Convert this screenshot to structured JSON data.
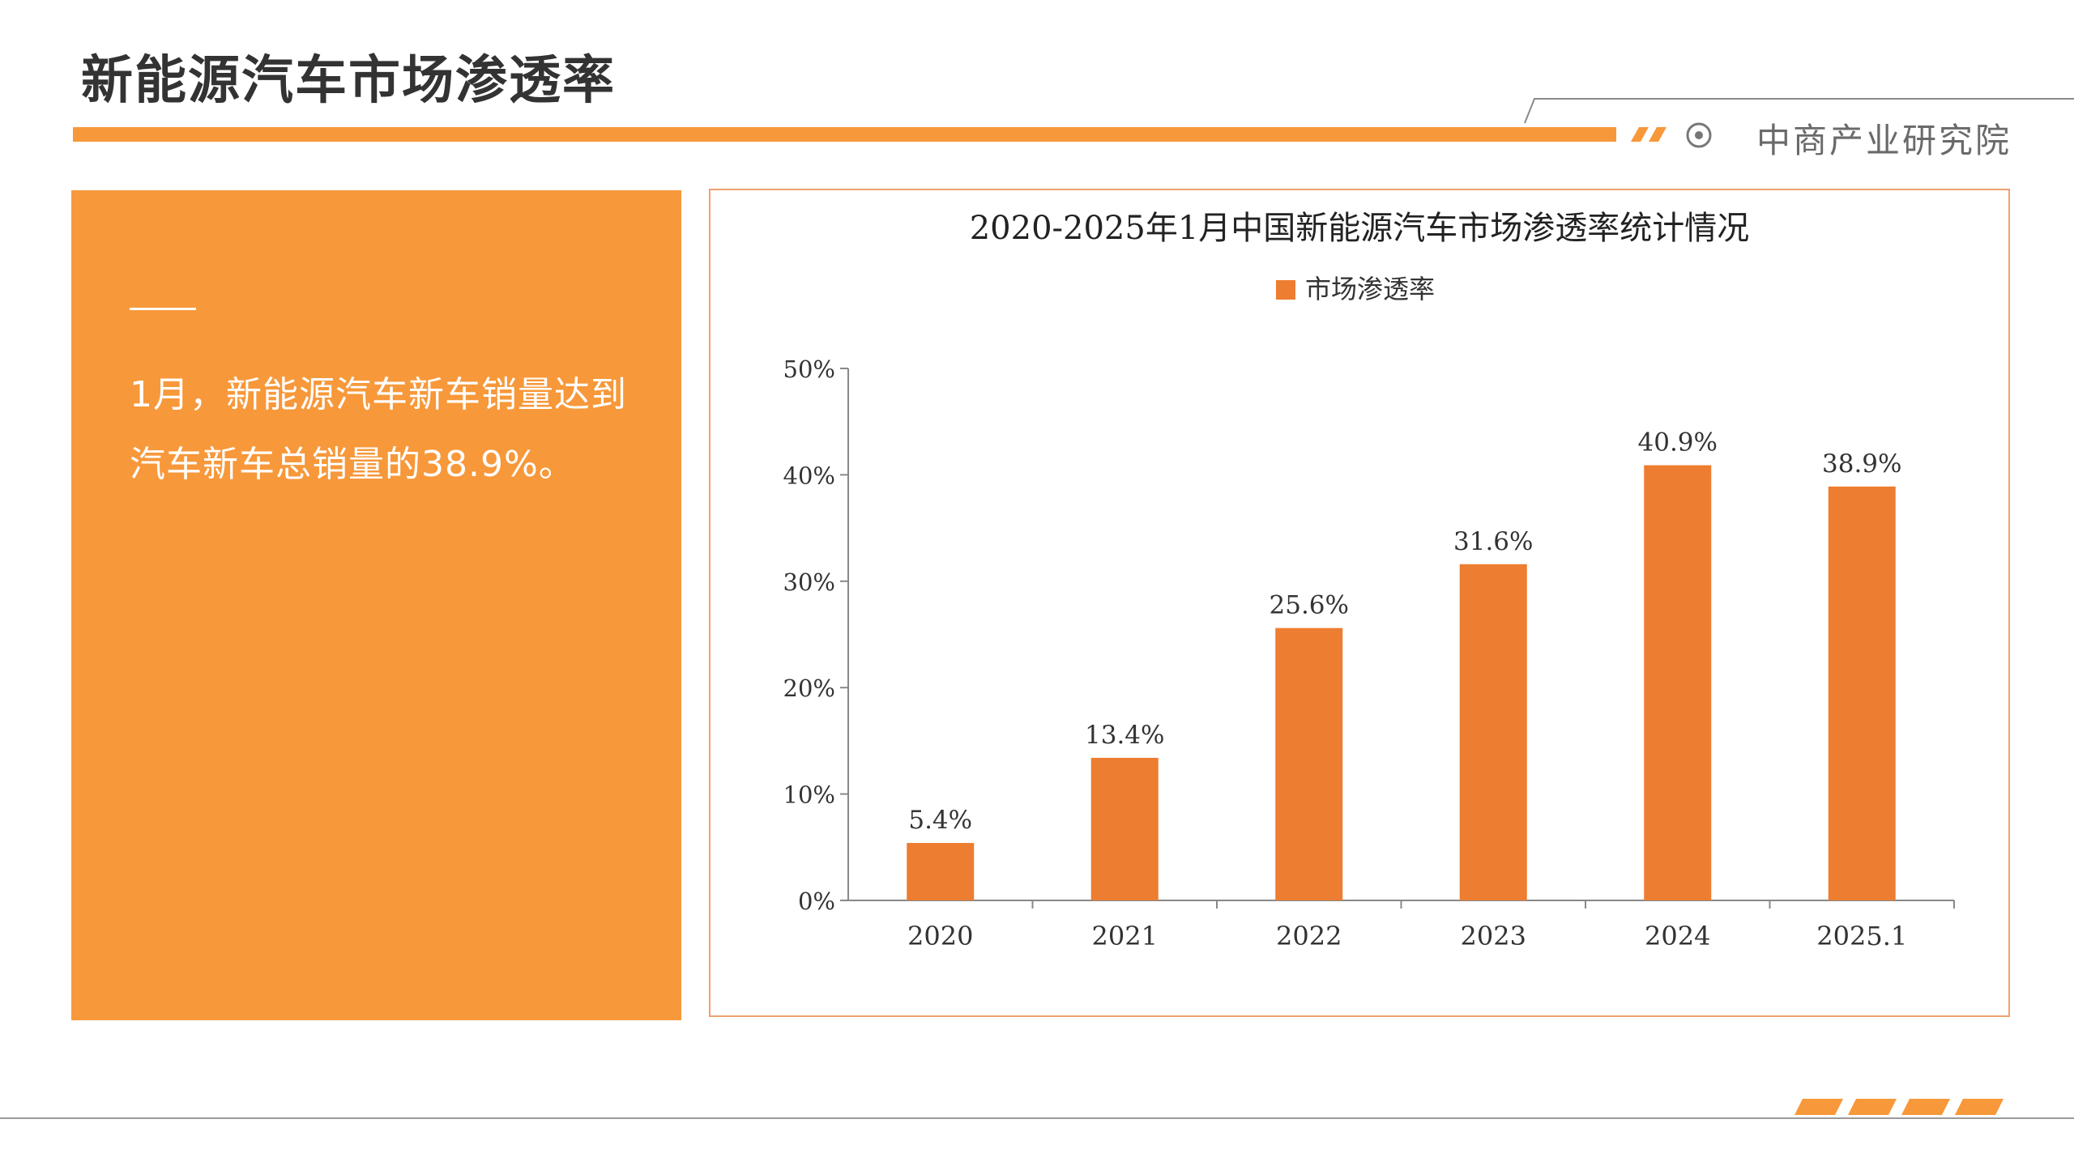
{
  "header": {
    "title": "新能源汽车市场渗透率",
    "brand": "中商产业研究院"
  },
  "summary": {
    "text": "1月，新能源汽车新车销量达到汽车新车总销量的38.9%。"
  },
  "colors": {
    "accent": "#f7983a",
    "bar": "#ed7d31"
  },
  "chart_data": {
    "type": "bar",
    "title": "2020-2025年1月中国新能源汽车市场渗透率统计情况",
    "categories": [
      "2020",
      "2021",
      "2022",
      "2023",
      "2024",
      "2025.1"
    ],
    "series": [
      {
        "name": "市场渗透率",
        "values": [
          5.4,
          13.4,
          25.6,
          31.6,
          40.9,
          38.9
        ],
        "labels": [
          "5.4%",
          "13.4%",
          "25.6%",
          "31.6%",
          "40.9%",
          "38.9%"
        ]
      }
    ],
    "yticks": [
      "0%",
      "10%",
      "20%",
      "30%",
      "40%",
      "50%"
    ],
    "ylim": [
      0,
      50
    ],
    "unit": "%",
    "grid": false,
    "legend": "top-center"
  }
}
